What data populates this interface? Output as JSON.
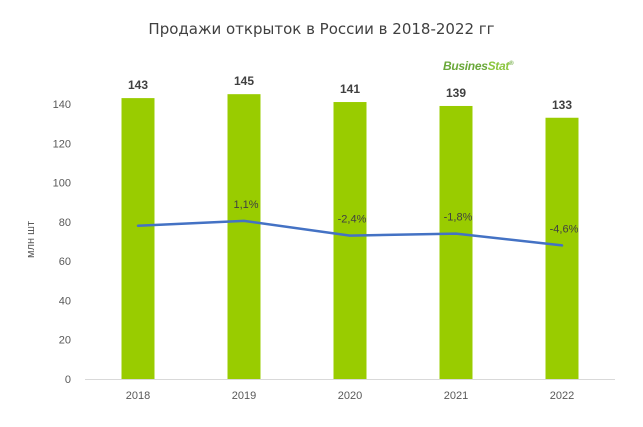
{
  "title": "Продажи открыток в России в 2018-2022 гг",
  "logo": {
    "part1": "Busines",
    "part2": "Stat",
    "mark": "®"
  },
  "chart_data": {
    "type": "bar",
    "categories": [
      "2018",
      "2019",
      "2020",
      "2021",
      "2022"
    ],
    "values": [
      143,
      145,
      141,
      139,
      133
    ],
    "value_labels": [
      "143",
      "145",
      "141",
      "139",
      "133"
    ],
    "line": {
      "values": [
        78,
        80.5,
        73,
        74,
        68
      ],
      "labels": [
        "",
        "1,1%",
        "-2,4%",
        "-1,8%",
        "-4,6%"
      ]
    },
    "ylabel": "млн шт",
    "xlabel": "",
    "ylim": [
      0,
      140
    ],
    "yticks": [
      0,
      20,
      40,
      60,
      80,
      100,
      120,
      140
    ],
    "grid": false,
    "colors": {
      "bar": "#99cc00",
      "line": "#4472c4",
      "axis": "#d9d9d9",
      "text": "#595959",
      "label": "#404040"
    }
  }
}
